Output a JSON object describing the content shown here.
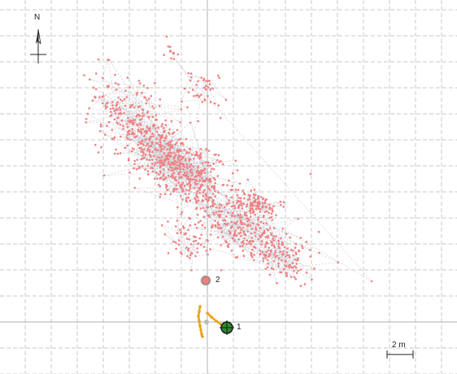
{
  "map": {
    "north_label": "N",
    "scale_label": "2 m",
    "waypoints": [
      {
        "id": "1",
        "label": "1",
        "fill": "#2e8b2e",
        "ring": "#1a1a1a"
      },
      {
        "id": "2",
        "label": "2",
        "fill": "#f08080",
        "ring": "#888888"
      }
    ],
    "colors": {
      "background": "#ffffff",
      "grid": "#c8c8c8",
      "axis": "#b0b0b0",
      "cloud_point": "#f08080",
      "cloud_path": "#c8c8d2",
      "track": "#e8a317"
    },
    "icons": [
      "compass-icon",
      "waypoint-icon",
      "scale-bar-icon"
    ]
  }
}
